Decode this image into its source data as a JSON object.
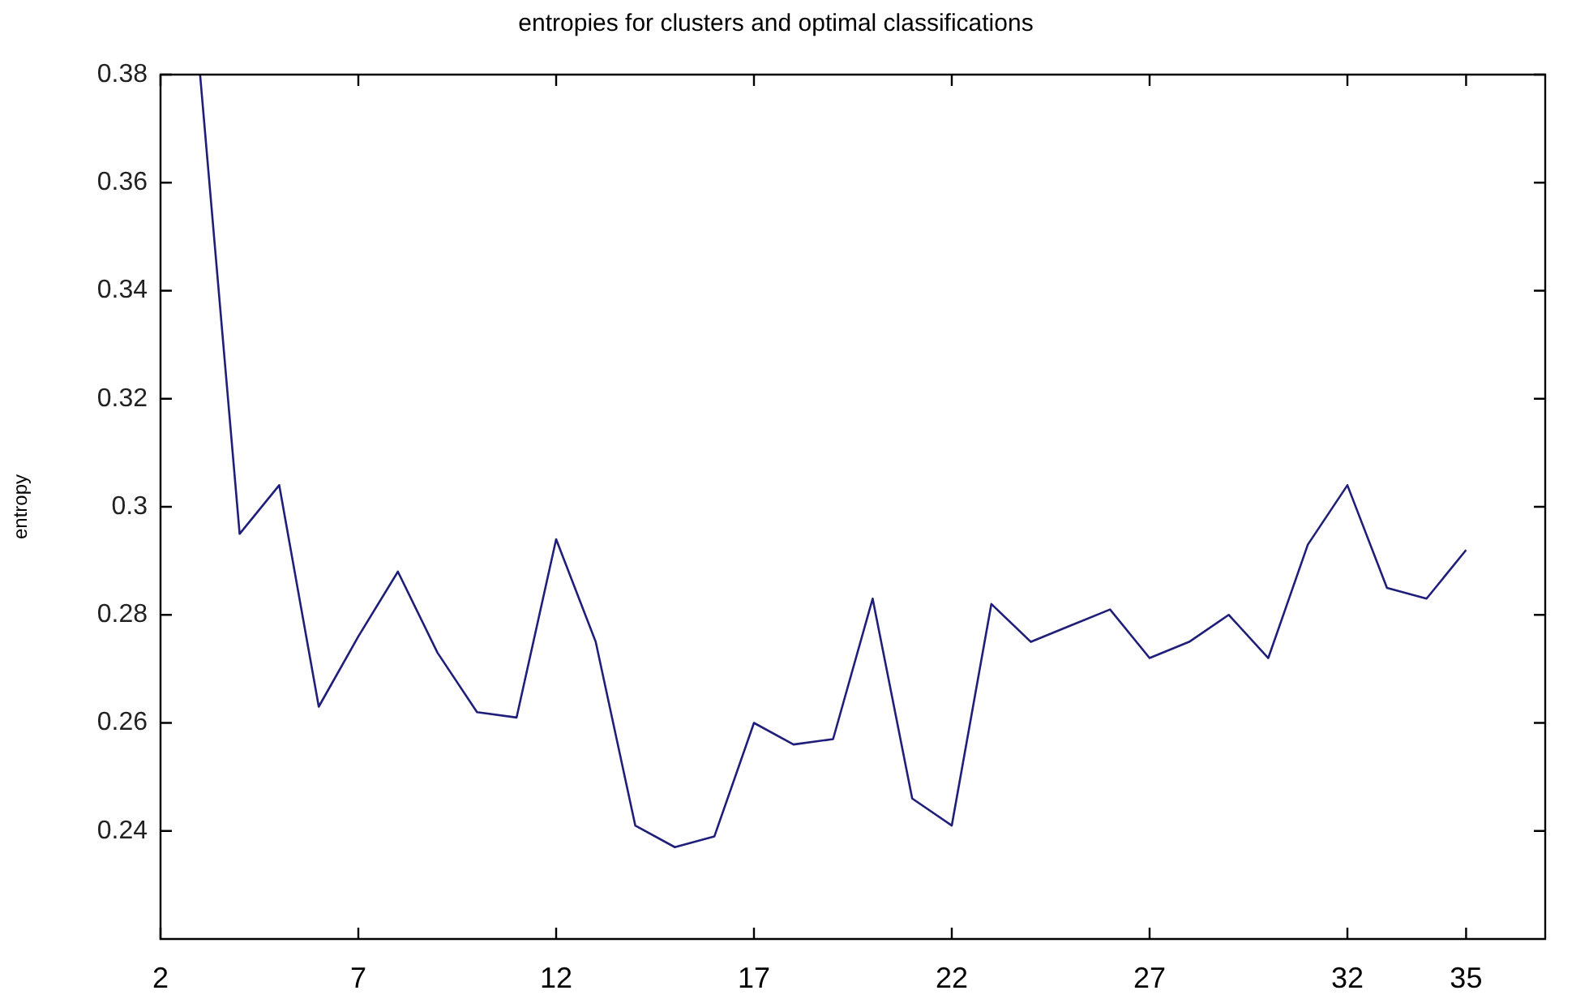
{
  "chart_data": {
    "type": "line",
    "title": "entropies for clusters and optimal classifications",
    "ylabel": "entropy",
    "x": [
      3,
      4,
      5,
      6,
      7,
      8,
      9,
      10,
      11,
      12,
      13,
      14,
      15,
      16,
      17,
      18,
      19,
      20,
      21,
      22,
      23,
      24,
      25,
      26,
      27,
      28,
      29,
      30,
      31,
      32,
      33,
      34,
      35
    ],
    "series": [
      {
        "color": "#1f1f7a",
        "values": [
          0.38,
          0.295,
          0.304,
          0.263,
          0.276,
          0.288,
          0.273,
          0.262,
          0.261,
          0.294,
          0.275,
          0.241,
          0.237,
          0.239,
          0.26,
          0.256,
          0.257,
          0.283,
          0.246,
          0.241,
          0.282,
          0.275,
          0.278,
          0.281,
          0.272,
          0.275,
          0.28,
          0.272,
          0.293,
          0.304,
          0.285,
          0.283,
          0.292
        ]
      }
    ],
    "xlim": [
      2,
      37
    ],
    "xticks": [
      2,
      7,
      12,
      17,
      22,
      27,
      32,
      35
    ],
    "ylim": [
      0.22,
      0.38
    ],
    "yticks": [
      0.24,
      0.26,
      0.28,
      0.3,
      0.32,
      0.34,
      0.36,
      0.38
    ],
    "grid": false,
    "legend": false,
    "marker": "none",
    "line_style": "solid"
  }
}
